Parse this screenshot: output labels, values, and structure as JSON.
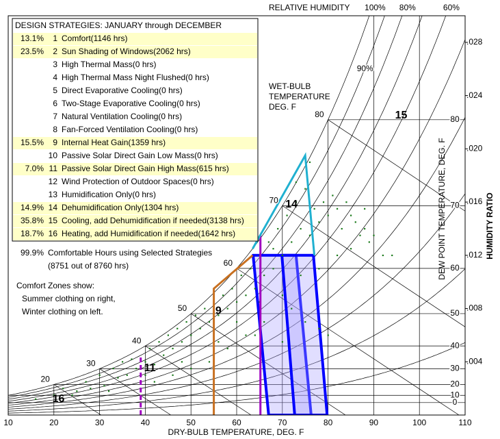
{
  "chart_data": {
    "type": "psychrometric",
    "title": "DESIGN STRATEGIES:  JANUARY through DECEMBER",
    "xlabel": "DRY-BULB TEMPERATURE, DEG. F",
    "ylabel": "HUMIDITY RATIO",
    "dewpoint_label": "DEW POINT TEMPERATURE, DEG. F",
    "rh_title": "RELATIVE HUMIDITY",
    "wetbulb_title": [
      "WET-BULB",
      "TEMPERATURE",
      "DEG. F"
    ],
    "xlim": [
      10,
      110
    ],
    "xticks": [
      10,
      20,
      30,
      40,
      50,
      60,
      70,
      80,
      90,
      100,
      110
    ],
    "ylim": [
      0,
      0.03
    ],
    "yticks": [
      {
        "value": 0.004,
        "label": ".004"
      },
      {
        "value": 0.008,
        "label": ".008"
      },
      {
        "value": 0.012,
        "label": ".012"
      },
      {
        "value": 0.016,
        "label": ".016"
      },
      {
        "value": 0.02,
        "label": ".020"
      },
      {
        "value": 0.024,
        "label": ".024"
      },
      {
        "value": 0.028,
        "label": ".028"
      }
    ],
    "dewpoint_ticks": [
      0,
      10,
      20,
      30,
      40,
      50,
      60,
      70,
      80
    ],
    "wetbulb_ticks": [
      20,
      30,
      40,
      50,
      60,
      70,
      80
    ],
    "rh_lines": [
      10,
      20,
      30,
      40,
      50,
      60,
      70,
      80,
      90,
      100
    ],
    "rh_labels": [
      {
        "value": 100,
        "label": "100%"
      },
      {
        "value": 80,
        "label": "80%"
      },
      {
        "value": 60,
        "label": "60%"
      }
    ],
    "rh_inline_label": {
      "value": 90,
      "label": "90%"
    },
    "strategies": [
      {
        "pct": "13.1%",
        "num": "1",
        "label": "Comfort(1146 hrs)",
        "color": "#000080"
      },
      {
        "pct": "23.5%",
        "num": "2",
        "label": "Sun Shading of Windows(2062 hrs)",
        "color": "#800080"
      },
      {
        "num": "3",
        "label": "High Thermal Mass(0 hrs)",
        "color": "#d98c00"
      },
      {
        "num": "4",
        "label": "High Thermal Mass Night Flushed(0 hrs)",
        "color": "#d98c00"
      },
      {
        "num": "5",
        "label": "Direct Evaporative Cooling(0 hrs)",
        "color": "#000080"
      },
      {
        "num": "6",
        "label": "Two-Stage Evaporative Cooling(0 hrs)",
        "color": "#000000"
      },
      {
        "num": "7",
        "label": "Natural Ventilation Cooling(0 hrs)",
        "color": "#008000"
      },
      {
        "num": "8",
        "label": "Fan-Forced Ventilation Cooling(0 hrs)",
        "color": "#008000"
      },
      {
        "pct": "15.5%",
        "num": "9",
        "label": "Internal Heat Gain(1359 hrs)",
        "color": "#c87000"
      },
      {
        "num": "10",
        "label": "Passive Solar Direct Gain Low Mass(0 hrs)",
        "color": "#c000c0"
      },
      {
        "pct": "7.0%",
        "num": "11",
        "label": "Passive Solar Direct Gain High Mass(615 hrs)",
        "color": "#8000a0"
      },
      {
        "num": "12",
        "label": "Wind Protection of Outdoor Spaces(0 hrs)",
        "color": "#402000"
      },
      {
        "num": "13",
        "label": "Humidification Only(0 hrs)",
        "color": "#00a0c0"
      },
      {
        "pct": "14.9%",
        "num": "14",
        "label": "Dehumidification Only(1304 hrs)",
        "color": "#00a0c0"
      },
      {
        "pct": "35.8%",
        "num": "15",
        "label": "Cooling, add Dehumidification if needed(3138 hrs)",
        "color": "#c00000"
      },
      {
        "pct": "18.7%",
        "num": "16",
        "label": "Heating, add Humidification if needed(1642 hrs)",
        "color": "#c00000"
      }
    ],
    "summary": {
      "pct": "99.9%",
      "line1": "Comfortable Hours using Selected Strategies",
      "line2": "(8751 out of 8760 hrs)"
    },
    "notes": [
      "Comfort Zones show:",
      "Summer clothing on right,",
      "Winter clothing on left."
    ],
    "comfort_zones": [
      {
        "points": [
          [
            63.6,
            0.012
          ],
          [
            73,
            0.012
          ],
          [
            76.3,
            0
          ],
          [
            67,
            0
          ]
        ]
      },
      {
        "points": [
          [
            69.9,
            0.012
          ],
          [
            76.8,
            0.012
          ],
          [
            79.8,
            0
          ],
          [
            72.7,
            0
          ]
        ]
      }
    ],
    "boundaries": [
      {
        "color": "#c87020",
        "points": [
          [
            55,
            0
          ],
          [
            55,
            0.0095
          ],
          [
            63.5,
            0.012
          ]
        ]
      },
      {
        "color": "#a000c0",
        "dashed": true,
        "points": [
          [
            39,
            0
          ],
          [
            39,
            0.0045
          ]
        ]
      },
      {
        "color": "#a000c0",
        "points": [
          [
            65.2,
            0
          ],
          [
            65.2,
            0.0135
          ]
        ]
      },
      {
        "color": "#20b0d0",
        "points": [
          [
            63.5,
            0.0125
          ],
          [
            75,
            0.0195
          ],
          [
            77,
            0.012
          ]
        ]
      }
    ],
    "zone_labels": [
      {
        "label": "16",
        "color": "#e00000",
        "at": [
          21,
          0.0012
        ]
      },
      {
        "label": "11",
        "color": "#a000c0",
        "at": [
          41,
          0.0035
        ]
      },
      {
        "label": "9",
        "color": "#d07000",
        "at": [
          56,
          0.0078
        ]
      },
      {
        "label": "14",
        "color": "#20b0d0",
        "at": [
          72,
          0.0158
        ]
      },
      {
        "label": "15",
        "color": "#e00000",
        "at": [
          96,
          0.0225
        ]
      }
    ],
    "point_color": "#1a7a1a",
    "points": [
      [
        20,
        0.0015
      ],
      [
        22,
        0.002
      ],
      [
        25,
        0.0018
      ],
      [
        27,
        0.0025
      ],
      [
        28,
        0.002
      ],
      [
        30,
        0.003
      ],
      [
        31,
        0.0022
      ],
      [
        33,
        0.0035
      ],
      [
        34,
        0.0028
      ],
      [
        35,
        0.004
      ],
      [
        36,
        0.003
      ],
      [
        37,
        0.0042
      ],
      [
        38,
        0.0035
      ],
      [
        40,
        0.004
      ],
      [
        41,
        0.005
      ],
      [
        42,
        0.0038
      ],
      [
        43,
        0.0055
      ],
      [
        44,
        0.0045
      ],
      [
        45,
        0.006
      ],
      [
        46,
        0.005
      ],
      [
        47,
        0.0065
      ],
      [
        48,
        0.0055
      ],
      [
        49,
        0.007
      ],
      [
        50,
        0.006
      ],
      [
        51,
        0.0075
      ],
      [
        52,
        0.0065
      ],
      [
        53,
        0.008
      ],
      [
        54,
        0.007
      ],
      [
        55,
        0.0085
      ],
      [
        56,
        0.0075
      ],
      [
        57,
        0.009
      ],
      [
        58,
        0.008
      ],
      [
        59,
        0.0095
      ],
      [
        60,
        0.0085
      ],
      [
        61,
        0.0105
      ],
      [
        62,
        0.009
      ],
      [
        63,
        0.011
      ],
      [
        64,
        0.0095
      ],
      [
        65,
        0.012
      ],
      [
        66,
        0.0105
      ],
      [
        67,
        0.013
      ],
      [
        68,
        0.011
      ],
      [
        69,
        0.014
      ],
      [
        70,
        0.012
      ],
      [
        71,
        0.015
      ],
      [
        72,
        0.013
      ],
      [
        73,
        0.016
      ],
      [
        74,
        0.014
      ],
      [
        75,
        0.017
      ],
      [
        76,
        0.0135
      ],
      [
        77,
        0.0155
      ],
      [
        78,
        0.0145
      ],
      [
        79,
        0.016
      ],
      [
        80,
        0.015
      ],
      [
        81,
        0.0165
      ],
      [
        82,
        0.0155
      ],
      [
        83,
        0.014
      ],
      [
        84,
        0.016
      ],
      [
        85,
        0.015
      ],
      [
        86,
        0.0145
      ],
      [
        87,
        0.0135
      ],
      [
        88,
        0.014
      ],
      [
        89,
        0.013
      ],
      [
        90,
        0.0135
      ],
      [
        92,
        0.012
      ],
      [
        94,
        0.012
      ],
      [
        70,
        0.009
      ],
      [
        72,
        0.008
      ],
      [
        75,
        0.007
      ],
      [
        78,
        0.0065
      ],
      [
        80,
        0.006
      ],
      [
        66,
        0.007
      ],
      [
        62,
        0.006
      ],
      [
        58,
        0.005
      ],
      [
        54,
        0.004
      ],
      [
        50,
        0.0035
      ],
      [
        46,
        0.003
      ],
      [
        42,
        0.0025
      ],
      [
        60,
        0.007
      ],
      [
        65,
        0.0085
      ],
      [
        74,
        0.0105
      ],
      [
        78,
        0.011
      ],
      [
        82,
        0.012
      ],
      [
        85,
        0.0125
      ],
      [
        76,
        0.019
      ],
      [
        73,
        0.0175
      ],
      [
        68,
        0.0125
      ],
      [
        88,
        0.0155
      ],
      [
        64,
        0.006
      ],
      [
        70,
        0.0055
      ],
      [
        56,
        0.0055
      ],
      [
        48,
        0.004
      ],
      [
        40,
        0.003
      ],
      [
        16,
        0.0012
      ],
      [
        24,
        0.0015
      ],
      [
        32,
        0.0018
      ]
    ]
  }
}
